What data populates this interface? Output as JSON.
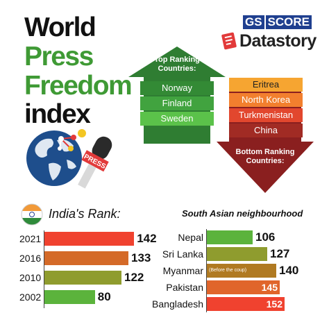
{
  "title": {
    "line1": "World",
    "line2": "Press",
    "line3": "Freedom",
    "line4": "index"
  },
  "brand": {
    "top_part1": "GS",
    "top_part2": "SCORE",
    "bottom": "Datastory"
  },
  "globe": {
    "mic_label": "PRESS"
  },
  "top_ranking": {
    "heading": "Top Ranking Countries:",
    "countries": [
      "Norway",
      "Finland",
      "Sweden"
    ]
  },
  "bottom_ranking": {
    "heading": "Bottom Ranking Countries:",
    "countries": [
      "Eritrea",
      "North Korea",
      "Turkmenistan",
      "China"
    ]
  },
  "india_rank": {
    "heading": "India's Rank:",
    "rows": [
      {
        "year": "2021",
        "rank": 142,
        "color": "#f0422f"
      },
      {
        "year": "2016",
        "rank": 133,
        "color": "#d46a28"
      },
      {
        "year": "2010",
        "rank": 122,
        "color": "#8f9c2e"
      },
      {
        "year": "2002",
        "rank": 80,
        "color": "#5bb33c"
      }
    ]
  },
  "south_asia": {
    "heading": "South Asian neighbourhood",
    "rows": [
      {
        "country": "Nepal",
        "rank": 106,
        "color": "#5bb33c",
        "note": ""
      },
      {
        "country": "Sri Lanka",
        "rank": 127,
        "color": "#8f9c2e",
        "note": ""
      },
      {
        "country": "Myanmar",
        "rank": 140,
        "color": "#b07a22",
        "note": "(Before the coup)"
      },
      {
        "country": "Pakistan",
        "rank": 145,
        "color": "#e0652b",
        "note": ""
      },
      {
        "country": "Bangladesh",
        "rank": 152,
        "color": "#f0422f",
        "note": ""
      }
    ]
  },
  "chart_data": [
    {
      "type": "bar",
      "title": "India's Rank:",
      "categories": [
        "2021",
        "2016",
        "2010",
        "2002"
      ],
      "values": [
        142,
        133,
        122,
        80
      ]
    },
    {
      "type": "bar",
      "title": "South Asian neighbourhood",
      "categories": [
        "Nepal",
        "Sri Lanka",
        "Myanmar",
        "Pakistan",
        "Bangladesh"
      ],
      "values": [
        106,
        127,
        140,
        145,
        152
      ]
    }
  ]
}
